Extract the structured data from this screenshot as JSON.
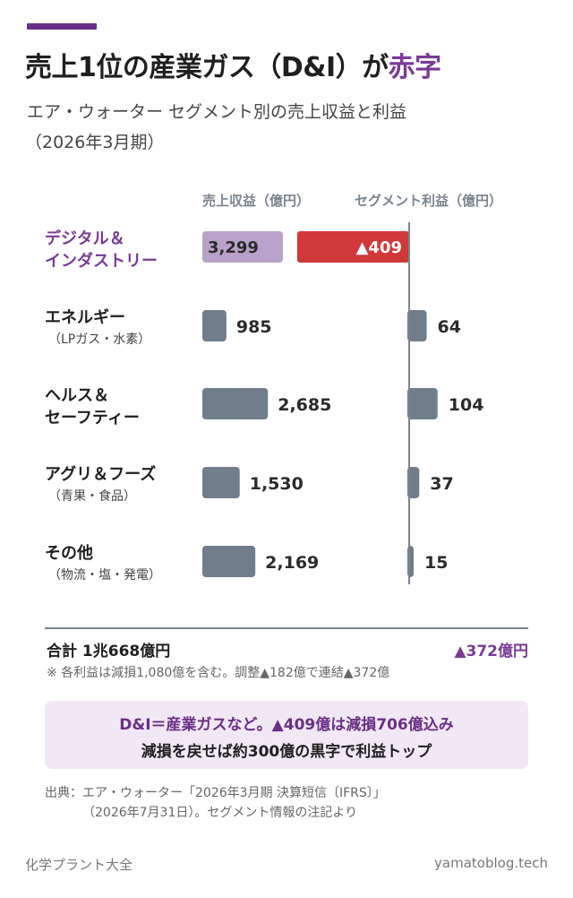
{
  "header": {
    "title_main": "売上1位の産業ガス（D&I）が",
    "title_highlight": "赤字",
    "subtitle_line1": "エア・ウォーター セグメント別の売上収益と利益",
    "subtitle_line2": "（2026年3月期）"
  },
  "columns": {
    "revenue_header": "売上収益（億円）",
    "profit_header": "セグメント利益（億円）"
  },
  "chart_data": {
    "type": "bar",
    "units": "億円",
    "categories": [
      {
        "name": "デジタル＆",
        "name2": "インダストリー",
        "sub": "",
        "highlight": true
      },
      {
        "name": "エネルギー",
        "name2": "",
        "sub": "（LPガス・水素）",
        "highlight": false
      },
      {
        "name": "ヘルス＆",
        "name2": "セーフティー",
        "sub": "",
        "highlight": false
      },
      {
        "name": "アグリ＆フーズ",
        "name2": "",
        "sub": "（青果・食品）",
        "highlight": false
      },
      {
        "name": "その他",
        "name2": "",
        "sub": "（物流・塩・発電）",
        "highlight": false
      }
    ],
    "series": [
      {
        "name": "売上収益（億円）",
        "values": [
          3299,
          985,
          2685,
          1530,
          2169
        ],
        "labels": [
          "3,299",
          "985",
          "2,685",
          "1,530",
          "2,169"
        ]
      },
      {
        "name": "セグメント利益（億円）",
        "values": [
          -409,
          64,
          104,
          37,
          15
        ],
        "labels": [
          "▲409",
          "64",
          "104",
          "37",
          "15"
        ]
      }
    ],
    "colors": {
      "default": "#717d8a",
      "highlight_revenue": "#b9a2c9",
      "negative": "#d0383a",
      "axis": "#7b8390"
    }
  },
  "totals": {
    "label": "合計 1兆668億円",
    "profit": "▲372億円",
    "note": "※ 各利益は減損1,080億を含む。調整▲182億で連結▲372億"
  },
  "callout": {
    "line1": "D&I＝産業ガスなど。▲409億は減損706億込み",
    "line2": "減損を戻せば約300億の黒字で利益トップ"
  },
  "source": {
    "line1": "出典：エア・ウォーター「2026年3月期 決算短信〔IFRS〕」",
    "line2": "（2026年7月31日）。セグメント情報の注記より"
  },
  "footer": {
    "left": "化学プラント大全",
    "right": "yamatoblog.tech"
  }
}
